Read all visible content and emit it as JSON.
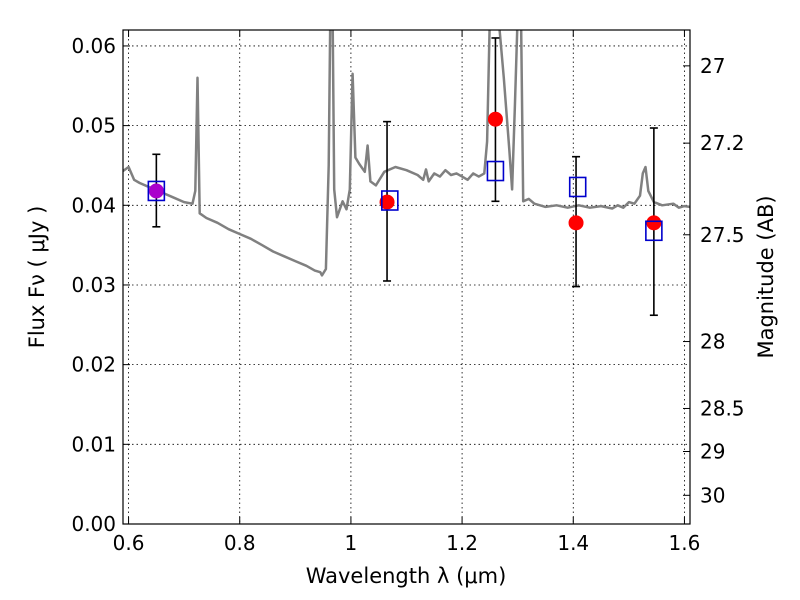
{
  "chart_data": {
    "type": "scatter",
    "title": "",
    "xlabel": "Wavelength  λ (μm)",
    "ylabel": "Flux  Fν  ( μJy )",
    "y2label": "Magnitude (AB)",
    "xlim": [
      0.59,
      1.61
    ],
    "ylim": [
      0.0,
      0.062
    ],
    "x_ticks": [
      0.6,
      0.8,
      1.0,
      1.2,
      1.4,
      1.6
    ],
    "x_tick_labels": [
      "0.6",
      "0.8",
      "1",
      "1.2",
      "1.4",
      "1.6"
    ],
    "y_ticks": [
      0.0,
      0.01,
      0.02,
      0.03,
      0.04,
      0.05,
      0.06
    ],
    "y_tick_labels": [
      "0.00",
      "0.01",
      "0.02",
      "0.03",
      "0.04",
      "0.05",
      "0.06"
    ],
    "y2_ticks": [
      {
        "label": "27",
        "flux": 0.0575
      },
      {
        "label": "27.2",
        "flux": 0.0478
      },
      {
        "label": "27.5",
        "flux": 0.0363
      },
      {
        "label": "28",
        "flux": 0.0229
      },
      {
        "label": "28.5",
        "flux": 0.0145
      },
      {
        "label": "29",
        "flux": 0.0091
      },
      {
        "label": "30",
        "flux": 0.0036
      }
    ],
    "grid": true,
    "colors": {
      "model": "#808080",
      "observed": "#ff0000",
      "model_band": "#0000cc",
      "overlap": "#aa00cc",
      "error_bar": "#000000"
    },
    "series": [
      {
        "kind": "model-spectrum",
        "points": [
          [
            0.59,
            0.0443
          ],
          [
            0.6,
            0.0448
          ],
          [
            0.61,
            0.0432
          ],
          [
            0.62,
            0.0428
          ],
          [
            0.64,
            0.0422
          ],
          [
            0.66,
            0.0416
          ],
          [
            0.68,
            0.041
          ],
          [
            0.7,
            0.0404
          ],
          [
            0.715,
            0.0402
          ],
          [
            0.72,
            0.0418
          ],
          [
            0.724,
            0.056
          ],
          [
            0.728,
            0.039
          ],
          [
            0.74,
            0.0384
          ],
          [
            0.76,
            0.0378
          ],
          [
            0.78,
            0.037
          ],
          [
            0.8,
            0.0364
          ],
          [
            0.82,
            0.0358
          ],
          [
            0.84,
            0.035
          ],
          [
            0.86,
            0.0342
          ],
          [
            0.88,
            0.0336
          ],
          [
            0.9,
            0.033
          ],
          [
            0.92,
            0.0324
          ],
          [
            0.935,
            0.0318
          ],
          [
            0.945,
            0.0316
          ],
          [
            0.948,
            0.0312
          ],
          [
            0.955,
            0.032
          ],
          [
            0.96,
            0.045
          ],
          [
            0.963,
            0.064
          ],
          [
            0.967,
            0.064
          ],
          [
            0.97,
            0.042
          ],
          [
            0.975,
            0.0385
          ],
          [
            0.985,
            0.0405
          ],
          [
            0.992,
            0.0395
          ],
          [
            0.998,
            0.042
          ],
          [
            1.003,
            0.0565
          ],
          [
            1.008,
            0.046
          ],
          [
            1.015,
            0.0452
          ],
          [
            1.025,
            0.0442
          ],
          [
            1.03,
            0.0475
          ],
          [
            1.035,
            0.043
          ],
          [
            1.045,
            0.0425
          ],
          [
            1.06,
            0.0442
          ],
          [
            1.08,
            0.0448
          ],
          [
            1.1,
            0.0444
          ],
          [
            1.12,
            0.0438
          ],
          [
            1.13,
            0.0432
          ],
          [
            1.135,
            0.0445
          ],
          [
            1.14,
            0.043
          ],
          [
            1.15,
            0.044
          ],
          [
            1.16,
            0.0436
          ],
          [
            1.17,
            0.0444
          ],
          [
            1.18,
            0.0438
          ],
          [
            1.19,
            0.044
          ],
          [
            1.2,
            0.0436
          ],
          [
            1.21,
            0.0432
          ],
          [
            1.22,
            0.044
          ],
          [
            1.23,
            0.0436
          ],
          [
            1.24,
            0.044
          ],
          [
            1.245,
            0.048
          ],
          [
            1.25,
            0.064
          ],
          [
            1.265,
            0.064
          ],
          [
            1.275,
            0.056
          ],
          [
            1.285,
            0.047
          ],
          [
            1.29,
            0.042
          ],
          [
            1.295,
            0.0525
          ],
          [
            1.3,
            0.064
          ],
          [
            1.306,
            0.064
          ],
          [
            1.31,
            0.0405
          ],
          [
            1.32,
            0.0408
          ],
          [
            1.33,
            0.0402
          ],
          [
            1.35,
            0.0398
          ],
          [
            1.37,
            0.04
          ],
          [
            1.39,
            0.0397
          ],
          [
            1.41,
            0.04
          ],
          [
            1.43,
            0.0397
          ],
          [
            1.45,
            0.0399
          ],
          [
            1.47,
            0.0396
          ],
          [
            1.48,
            0.04
          ],
          [
            1.49,
            0.0397
          ],
          [
            1.5,
            0.0404
          ],
          [
            1.51,
            0.0402
          ],
          [
            1.52,
            0.0412
          ],
          [
            1.525,
            0.044
          ],
          [
            1.53,
            0.0448
          ],
          [
            1.535,
            0.0418
          ],
          [
            1.545,
            0.0404
          ],
          [
            1.56,
            0.04
          ],
          [
            1.58,
            0.0402
          ],
          [
            1.59,
            0.0397
          ],
          [
            1.6,
            0.0399
          ],
          [
            1.61,
            0.0398
          ]
        ]
      },
      {
        "kind": "observed",
        "x": [
          0.65,
          1.065,
          1.26,
          1.405,
          1.545
        ],
        "y": [
          0.0418,
          0.0404,
          0.0508,
          0.0378,
          0.0378
        ],
        "yerr_low": [
          0.0373,
          0.0305,
          0.0405,
          0.0298,
          0.0262
        ],
        "yerr_high": [
          0.0464,
          0.0505,
          0.061,
          0.0461,
          0.0497
        ]
      },
      {
        "kind": "model-band",
        "x": [
          0.65,
          1.07,
          1.26,
          1.408,
          1.545
        ],
        "y": [
          0.0418,
          0.0406,
          0.0443,
          0.0423,
          0.0368
        ]
      }
    ]
  }
}
